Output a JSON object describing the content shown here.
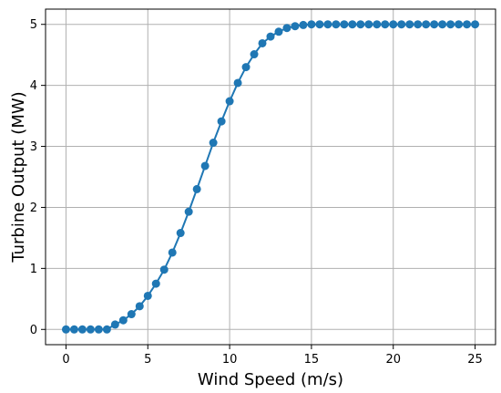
{
  "chart_data": {
    "type": "line",
    "title": "",
    "xlabel": "Wind Speed (m/s)",
    "ylabel": "Turbine Output (MW)",
    "xlim": [
      -1.25,
      26.25
    ],
    "ylim": [
      -0.25,
      5.25
    ],
    "xticks": [
      0,
      5,
      10,
      15,
      20,
      25
    ],
    "yticks": [
      0,
      1,
      2,
      3,
      4,
      5
    ],
    "grid": true,
    "series": [
      {
        "color": "#1f77b4",
        "marker": "circle",
        "x": [
          0,
          0.5,
          1,
          1.5,
          2,
          2.5,
          3,
          3.5,
          4,
          4.5,
          5,
          5.5,
          6,
          6.5,
          7,
          7.5,
          8,
          8.5,
          9,
          9.5,
          10,
          10.5,
          11,
          11.5,
          12,
          12.5,
          13,
          13.5,
          14,
          14.5,
          15,
          15.5,
          16,
          16.5,
          17,
          17.5,
          18,
          18.5,
          19,
          19.5,
          20,
          20.5,
          21,
          21.5,
          22,
          22.5,
          23,
          23.5,
          24,
          24.5,
          25
        ],
        "y": [
          0,
          0,
          0,
          0,
          0,
          0,
          0.08,
          0.15,
          0.25,
          0.38,
          0.55,
          0.75,
          0.98,
          1.26,
          1.58,
          1.93,
          2.3,
          2.68,
          3.06,
          3.41,
          3.74,
          4.04,
          4.3,
          4.51,
          4.69,
          4.8,
          4.88,
          4.94,
          4.97,
          4.99,
          5,
          5,
          5,
          5,
          5,
          5,
          5,
          5,
          5,
          5,
          5,
          5,
          5,
          5,
          5,
          5,
          5,
          5,
          5,
          5,
          5
        ]
      }
    ]
  }
}
